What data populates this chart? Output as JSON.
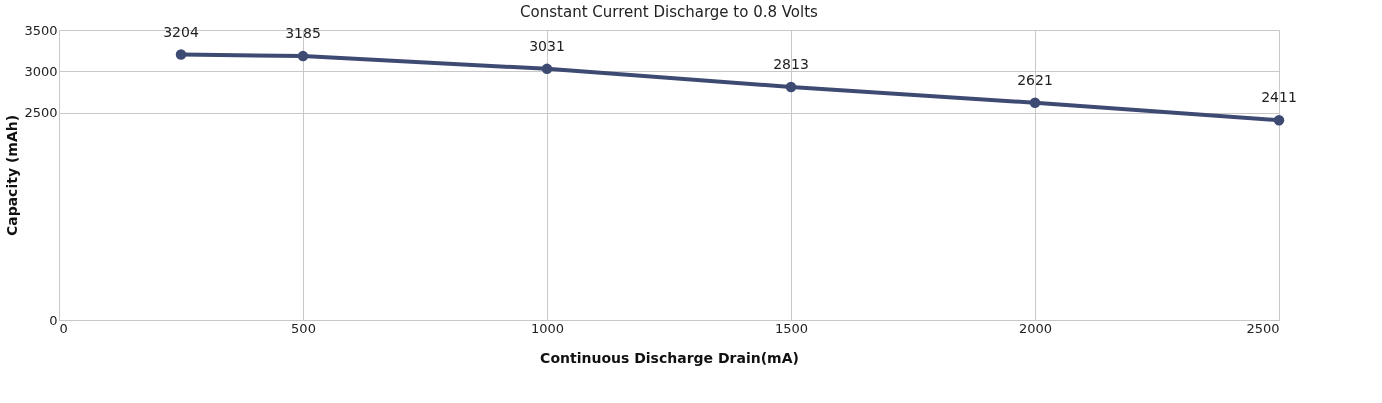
{
  "chart_data": {
    "type": "line",
    "title": "Constant Current Discharge to 0.8 Volts",
    "xlabel": "Continuous Discharge Drain(mA)",
    "ylabel": "Capacity  (mAh)",
    "x": [
      250,
      500,
      1000,
      1500,
      2000,
      2500
    ],
    "series": [
      {
        "color": "#3d4a72",
        "values": [
          3204,
          3185,
          3031,
          2813,
          2621,
          2411
        ]
      }
    ],
    "xlim": [
      0,
      2500
    ],
    "xticks": [
      0,
      500,
      1000,
      1500,
      2000,
      2500
    ],
    "ylim": [
      0,
      3500
    ],
    "yticks": [
      0,
      2500,
      3000,
      3500
    ],
    "grid": true,
    "marker": "circle",
    "data_labels": true,
    "line_style": "solid"
  }
}
